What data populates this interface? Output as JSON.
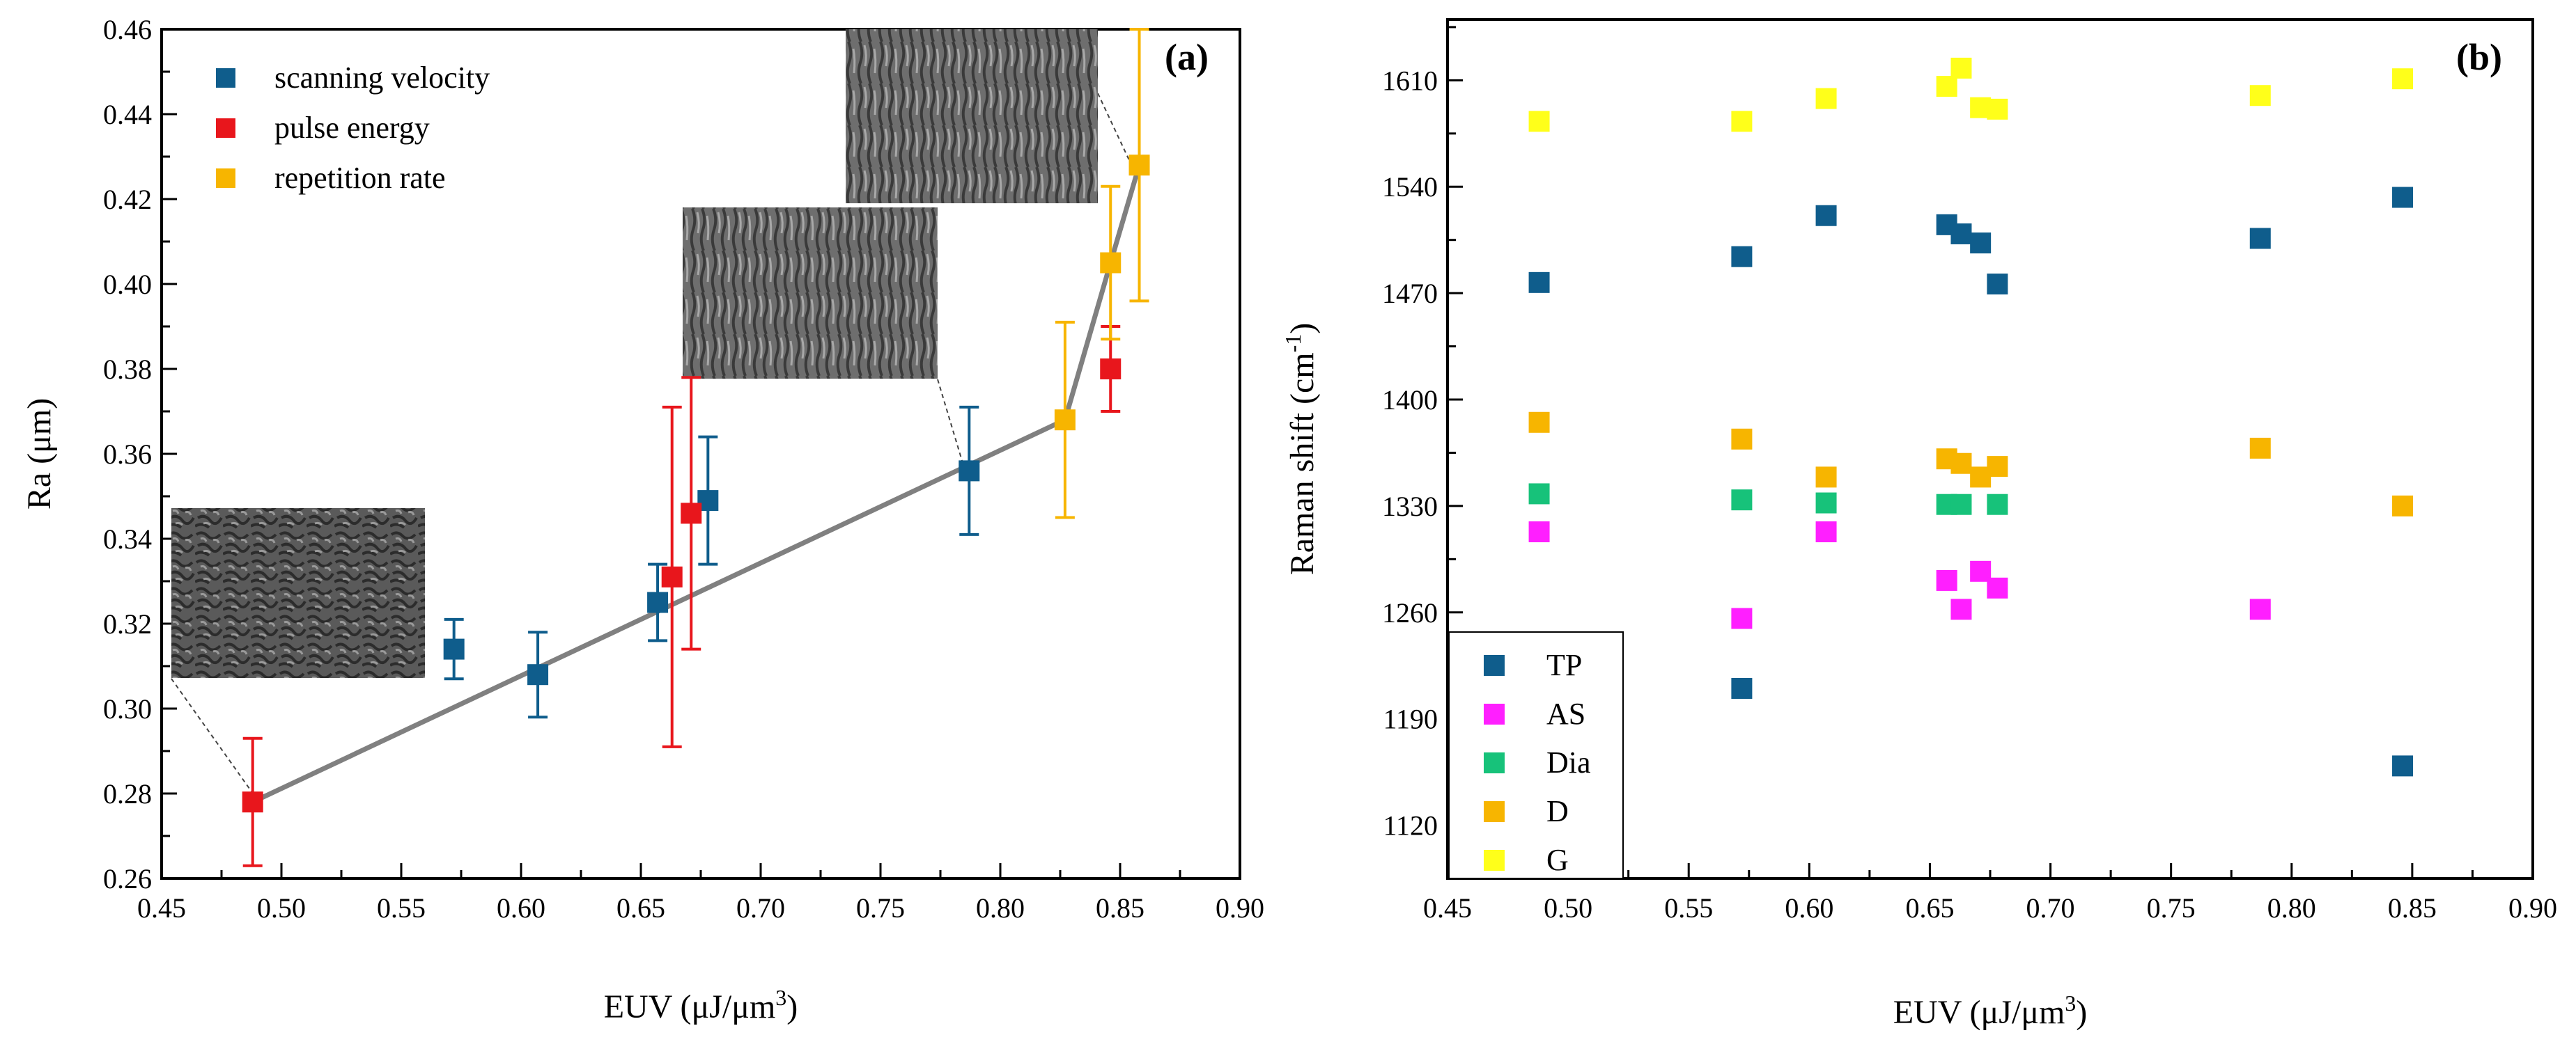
{
  "chart_data": [
    {
      "panel": "(a)",
      "type": "scatter",
      "title": "",
      "xlabel": "EUV (μJ/μm",
      "xlabel_sup": "3",
      "xlabel_end": ")",
      "ylabel": "Ra (μm)",
      "xlim": [
        0.45,
        0.9
      ],
      "ylim": [
        0.26,
        0.46
      ],
      "xticks": [
        "0.45",
        "0.50",
        "0.55",
        "0.60",
        "0.65",
        "0.70",
        "0.75",
        "0.80",
        "0.85",
        "0.90"
      ],
      "yticks": [
        "0.26",
        "0.28",
        "0.30",
        "0.32",
        "0.34",
        "0.36",
        "0.38",
        "0.40",
        "0.42",
        "0.44",
        "0.46"
      ],
      "legend_position": "top-left",
      "series": [
        {
          "name": "scanning velocity",
          "color": "#0f5d8c",
          "points": [
            {
              "x": 0.572,
              "y": 0.314,
              "err": 0.007
            },
            {
              "x": 0.607,
              "y": 0.308,
              "err": 0.01
            },
            {
              "x": 0.657,
              "y": 0.325,
              "err": 0.009
            },
            {
              "x": 0.678,
              "y": 0.349,
              "err": 0.015
            },
            {
              "x": 0.787,
              "y": 0.356,
              "err": 0.015
            }
          ]
        },
        {
          "name": "pulse energy",
          "color": "#e8161c",
          "points": [
            {
              "x": 0.488,
              "y": 0.278,
              "err": 0.015
            },
            {
              "x": 0.663,
              "y": 0.331,
              "err": 0.04
            },
            {
              "x": 0.671,
              "y": 0.346,
              "err": 0.032
            },
            {
              "x": 0.846,
              "y": 0.38,
              "err": 0.01
            }
          ]
        },
        {
          "name": "repetition rate",
          "color": "#f7b500",
          "points": [
            {
              "x": 0.827,
              "y": 0.368,
              "err": 0.023
            },
            {
              "x": 0.846,
              "y": 0.405,
              "err": 0.018
            },
            {
              "x": 0.858,
              "y": 0.428,
              "err": 0.032
            }
          ]
        }
      ],
      "trend_line": {
        "color": "#808080",
        "x": [
          0.488,
          0.827,
          0.846,
          0.858
        ],
        "y": [
          0.278,
          0.368,
          0.405,
          0.428
        ]
      }
    },
    {
      "panel": "(b)",
      "type": "scatter",
      "title": "",
      "xlabel": "EUV (μJ/μm",
      "xlabel_sup": "3",
      "xlabel_end": ")",
      "ylabel": "Raman shift (cm",
      "ylabel_sup": "-1",
      "ylabel_end": ")",
      "xlim": [
        0.45,
        0.9
      ],
      "ylim": [
        1085,
        1650
      ],
      "xticks": [
        "0.45",
        "0.50",
        "0.55",
        "0.60",
        "0.65",
        "0.70",
        "0.75",
        "0.80",
        "0.85",
        "0.90"
      ],
      "yticks": [
        "1120",
        "1190",
        "1260",
        "1330",
        "1400",
        "1470",
        "1540",
        "1610"
      ],
      "legend_position": "bottom-left",
      "series": [
        {
          "name": "TP",
          "color": "#0f5d8c",
          "points": [
            {
              "x": 0.488,
              "y": 1477
            },
            {
              "x": 0.572,
              "y": 1494
            },
            {
              "x": 0.572,
              "y": 1210
            },
            {
              "x": 0.607,
              "y": 1521
            },
            {
              "x": 0.657,
              "y": 1515
            },
            {
              "x": 0.663,
              "y": 1509
            },
            {
              "x": 0.671,
              "y": 1503
            },
            {
              "x": 0.678,
              "y": 1476
            },
            {
              "x": 0.787,
              "y": 1506
            },
            {
              "x": 0.846,
              "y": 1533
            },
            {
              "x": 0.846,
              "y": 1159
            }
          ]
        },
        {
          "name": "AS",
          "color": "#ff1fff",
          "points": [
            {
              "x": 0.488,
              "y": 1313
            },
            {
              "x": 0.572,
              "y": 1256
            },
            {
              "x": 0.607,
              "y": 1313
            },
            {
              "x": 0.657,
              "y": 1281
            },
            {
              "x": 0.663,
              "y": 1262
            },
            {
              "x": 0.671,
              "y": 1287
            },
            {
              "x": 0.678,
              "y": 1276
            },
            {
              "x": 0.787,
              "y": 1262
            }
          ]
        },
        {
          "name": "Dia",
          "color": "#17c27a",
          "points": [
            {
              "x": 0.488,
              "y": 1338
            },
            {
              "x": 0.572,
              "y": 1334
            },
            {
              "x": 0.607,
              "y": 1332
            },
            {
              "x": 0.657,
              "y": 1331
            },
            {
              "x": 0.663,
              "y": 1331
            },
            {
              "x": 0.678,
              "y": 1331
            }
          ]
        },
        {
          "name": "D",
          "color": "#f7b500",
          "points": [
            {
              "x": 0.488,
              "y": 1385
            },
            {
              "x": 0.572,
              "y": 1374
            },
            {
              "x": 0.607,
              "y": 1349
            },
            {
              "x": 0.657,
              "y": 1361
            },
            {
              "x": 0.663,
              "y": 1358
            },
            {
              "x": 0.671,
              "y": 1349
            },
            {
              "x": 0.678,
              "y": 1356
            },
            {
              "x": 0.787,
              "y": 1368
            },
            {
              "x": 0.846,
              "y": 1330
            }
          ]
        },
        {
          "name": "G",
          "color": "#ffff1a",
          "points": [
            {
              "x": 0.488,
              "y": 1583
            },
            {
              "x": 0.572,
              "y": 1583
            },
            {
              "x": 0.607,
              "y": 1598
            },
            {
              "x": 0.657,
              "y": 1606
            },
            {
              "x": 0.663,
              "y": 1618
            },
            {
              "x": 0.671,
              "y": 1592
            },
            {
              "x": 0.678,
              "y": 1591
            },
            {
              "x": 0.787,
              "y": 1600
            },
            {
              "x": 0.846,
              "y": 1611
            }
          ]
        }
      ]
    }
  ]
}
